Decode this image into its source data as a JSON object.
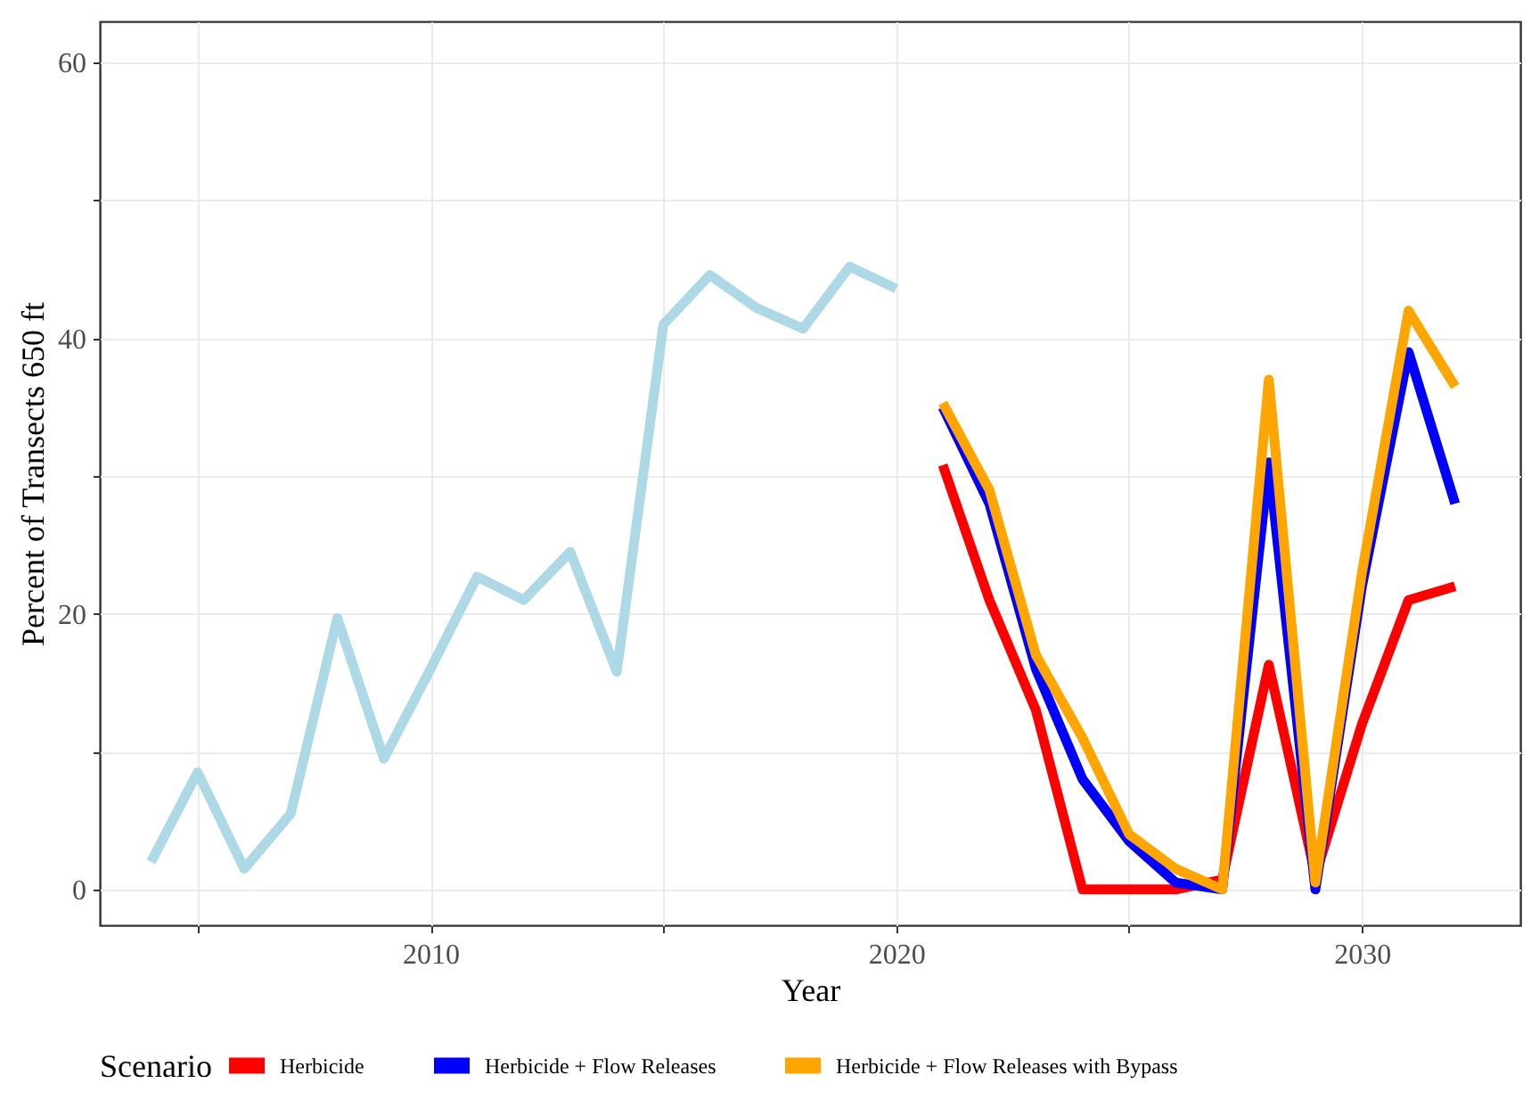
{
  "chart_data": {
    "type": "line",
    "xlabel": "Year",
    "ylabel": "Percent of Transects 650 ft",
    "legend_title": "Scenario",
    "legend": "bottom",
    "grid": true,
    "x": [
      2004,
      2005,
      2006,
      2007,
      2008,
      2009,
      2010,
      2011,
      2012,
      2013,
      2014,
      2015,
      2016,
      2017,
      2018,
      2019,
      2020
    ],
    "xlim": [
      2002.9,
      2033.4
    ],
    "ylim": [
      -2.6,
      63
    ],
    "xticks": [
      {
        "value": 2005,
        "label": null
      },
      2010,
      {
        "value": 2015,
        "label": null
      },
      2020,
      {
        "value": 2025,
        "label": null
      },
      2030
    ],
    "yticks": [
      0,
      {
        "value": 10,
        "label": null
      },
      20,
      {
        "value": 30,
        "label": null
      },
      40,
      {
        "value": 50,
        "label": null
      },
      60
    ],
    "series": [
      {
        "color": "#add8e6",
        "values": [
          2,
          8.5,
          1.5,
          5.5,
          19.7,
          9.5,
          16,
          22.7,
          21,
          24.5,
          15.8,
          41,
          44.6,
          42.2,
          40.7,
          45.2,
          43.6
        ]
      },
      {
        "name": "Herbicide",
        "color": "#ff0000",
        "x": [
          2021,
          2022,
          2023,
          2024,
          2025,
          2026,
          2027,
          2028,
          2029,
          2030,
          2031,
          2032
        ],
        "values": [
          30.8,
          21,
          13,
          0,
          0,
          0,
          0.7,
          16.3,
          1,
          12,
          21,
          22
        ]
      },
      {
        "name": "Herbicide + Flow Releases",
        "color": "#0000ff",
        "x": [
          2021,
          2022,
          2023,
          2024,
          2025,
          2026,
          2027,
          2028,
          2029,
          2030,
          2031,
          2032
        ],
        "values": [
          35,
          28,
          16,
          8,
          3.5,
          0.5,
          0,
          31,
          0,
          22,
          39,
          28
        ]
      },
      {
        "name": "Herbicide + Flow Releases with Bypass",
        "color": "#ffa500",
        "x": [
          2021,
          2022,
          2023,
          2024,
          2025,
          2026,
          2027,
          2028,
          2029,
          2030,
          2031,
          2032
        ],
        "values": [
          35.3,
          29,
          17,
          11,
          4,
          1.5,
          0,
          37,
          0.5,
          23,
          42,
          36.5
        ]
      }
    ]
  }
}
